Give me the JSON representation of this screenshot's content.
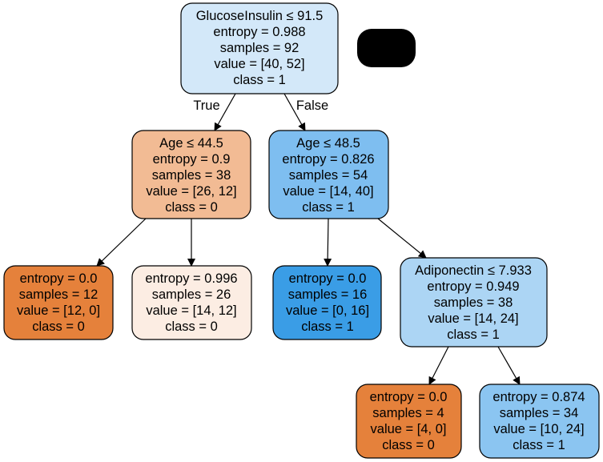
{
  "nodes": [
    {
      "id": "root",
      "lines": [
        "GlucoseInsulin ≤ 91.5",
        "entropy = 0.988",
        "samples = 92",
        "value = [40, 52]",
        "class = 1"
      ],
      "fill": "#d3e8f9"
    },
    {
      "id": "n1",
      "lines": [
        "Age ≤ 44.5",
        "entropy = 0.9",
        "samples = 38",
        "value = [26, 12]",
        "class = 0"
      ],
      "fill": "#f2bb94"
    },
    {
      "id": "n2",
      "lines": [
        "Age ≤ 48.5",
        "entropy = 0.826",
        "samples = 54",
        "value = [14, 40]",
        "class = 1"
      ],
      "fill": "#7ebef0"
    },
    {
      "id": "n3",
      "lines": [
        "entropy = 0.0",
        "samples = 12",
        "value = [12, 0]",
        "class = 0"
      ],
      "fill": "#e5813b"
    },
    {
      "id": "n4",
      "lines": [
        "entropy = 0.996",
        "samples = 26",
        "value = [14, 12]",
        "class = 0"
      ],
      "fill": "#fcede3"
    },
    {
      "id": "n5",
      "lines": [
        "entropy = 0.0",
        "samples = 16",
        "value = [0, 16]",
        "class = 1"
      ],
      "fill": "#3a9de6"
    },
    {
      "id": "n6",
      "lines": [
        "Adiponectin ≤ 7.933",
        "entropy = 0.949",
        "samples = 38",
        "value = [14, 24]",
        "class = 1"
      ],
      "fill": "#acd5f4"
    },
    {
      "id": "n7",
      "lines": [
        "entropy = 0.0",
        "samples = 4",
        "value = [4, 0]",
        "class = 0"
      ],
      "fill": "#e5813b"
    },
    {
      "id": "n8",
      "lines": [
        "entropy = 0.874",
        "samples = 34",
        "value = [10, 24]",
        "class = 1"
      ],
      "fill": "#8bc5f1"
    }
  ],
  "edge_labels": {
    "true": "True",
    "false": "False"
  },
  "redaction_fill": "#000000"
}
